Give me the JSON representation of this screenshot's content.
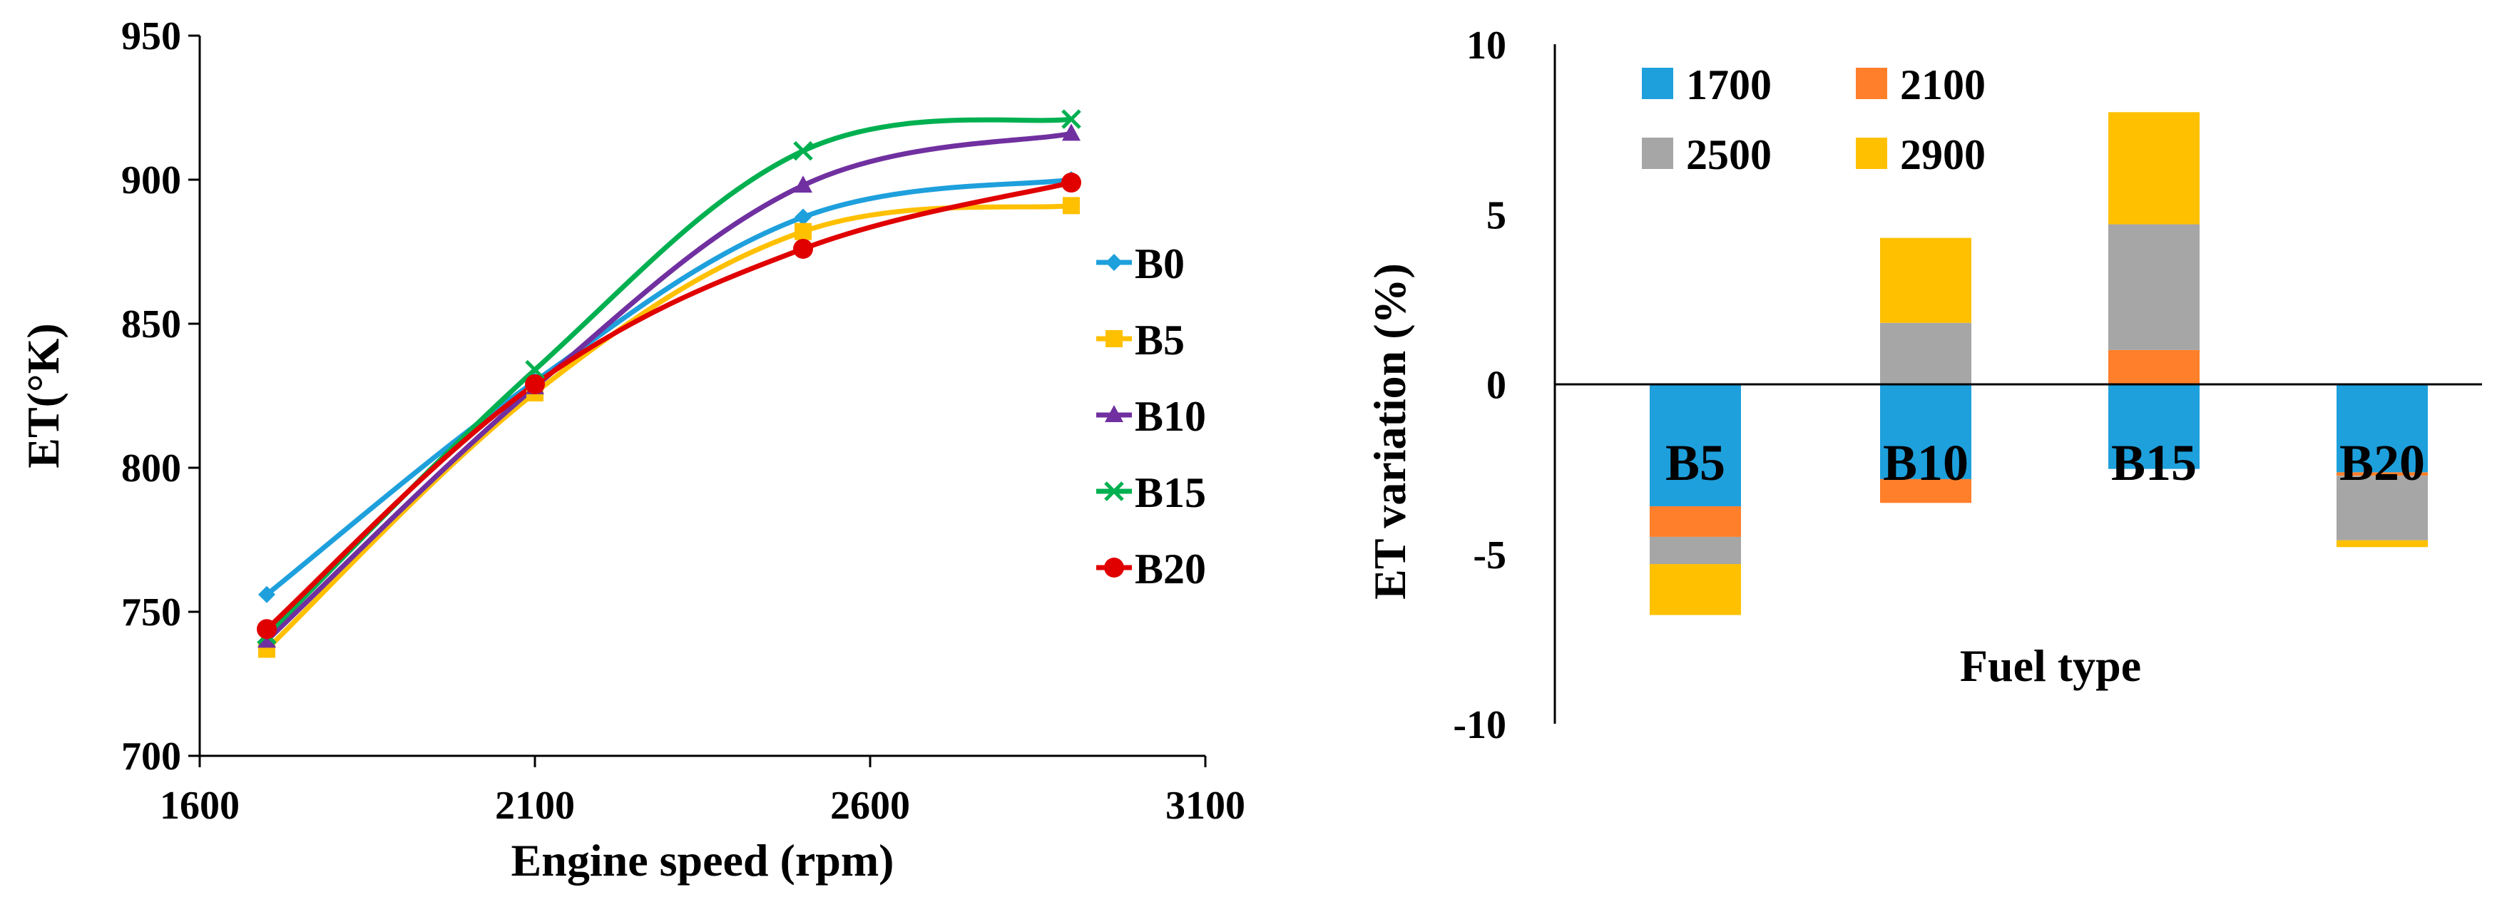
{
  "chart_data": [
    {
      "type": "line",
      "title": "",
      "xlabel": "Engine speed (rpm)",
      "ylabel": "ET(°K)",
      "xlim": [
        1600,
        3100
      ],
      "ylim": [
        700,
        950
      ],
      "xticks": [
        1600,
        2100,
        2600,
        3100
      ],
      "yticks": [
        700,
        750,
        800,
        850,
        900,
        950
      ],
      "legend_position": "right",
      "x": [
        1700,
        2100,
        2500,
        2900
      ],
      "series": [
        {
          "name": "B0",
          "values": [
            756,
            830,
            887,
            900
          ],
          "color": "#1ea0dc",
          "marker": "diamond"
        },
        {
          "name": "B5",
          "values": [
            737,
            826,
            882,
            891
          ],
          "color": "#ffc000",
          "marker": "square"
        },
        {
          "name": "B10",
          "values": [
            740,
            828,
            898,
            916
          ],
          "color": "#7030a0",
          "marker": "triangle"
        },
        {
          "name": "B15",
          "values": [
            742,
            834,
            910,
            921
          ],
          "color": "#00b050",
          "marker": "x"
        },
        {
          "name": "B20",
          "values": [
            744,
            829,
            876,
            899
          ],
          "color": "#e00000",
          "marker": "circle"
        }
      ]
    },
    {
      "type": "bar",
      "stacked": true,
      "title": "",
      "xlabel": "Fuel type",
      "ylabel": "ET variation (%)",
      "ylim": [
        -10,
        10
      ],
      "yticks": [
        -10,
        -5,
        0,
        5,
        10
      ],
      "legend_position": "top-left",
      "categories": [
        "B5",
        "B10",
        "B15",
        "B20"
      ],
      "series": [
        {
          "name": "1700",
          "values": [
            -3.6,
            -2.8,
            -2.5,
            -2.6
          ],
          "color": "#1ea0dc"
        },
        {
          "name": "2100",
          "values": [
            -0.9,
            -0.7,
            1.0,
            -0.1
          ],
          "color": "#ff7f2a"
        },
        {
          "name": "2500",
          "values": [
            -0.8,
            1.8,
            3.7,
            -1.9
          ],
          "color": "#a6a6a6"
        },
        {
          "name": "2900",
          "values": [
            -1.5,
            2.5,
            3.3,
            -0.2
          ],
          "color": "#ffc000"
        }
      ]
    }
  ]
}
